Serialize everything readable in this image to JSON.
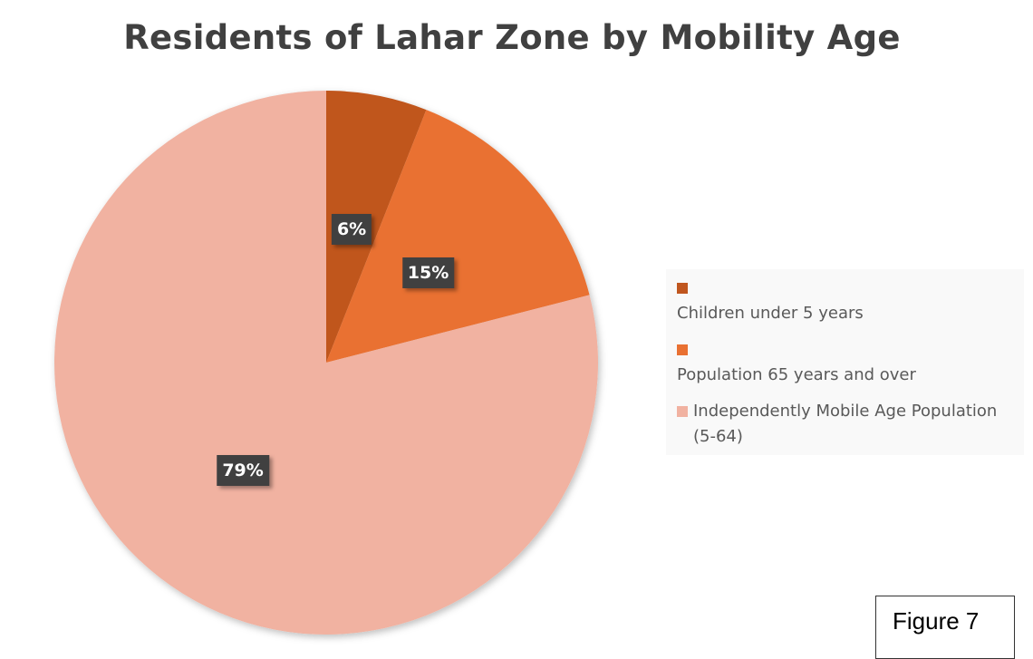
{
  "chart_data": {
    "type": "pie",
    "title": "Residents of Lahar Zone by Mobility Age",
    "start_angle": "top, clockwise",
    "legend_position": "right",
    "slices": [
      {
        "label": "Children under 5 years",
        "value": 6,
        "display": "6%",
        "color": "#C0561F"
      },
      {
        "label": "Population 65 years and over",
        "value": 15,
        "display": "15%",
        "color": "#E97132"
      },
      {
        "label": "Independently Mobile Age Population (5-64)",
        "value": 79,
        "display": "79%",
        "color": "#F1B2A1"
      }
    ]
  },
  "figure_label": "Figure 7"
}
